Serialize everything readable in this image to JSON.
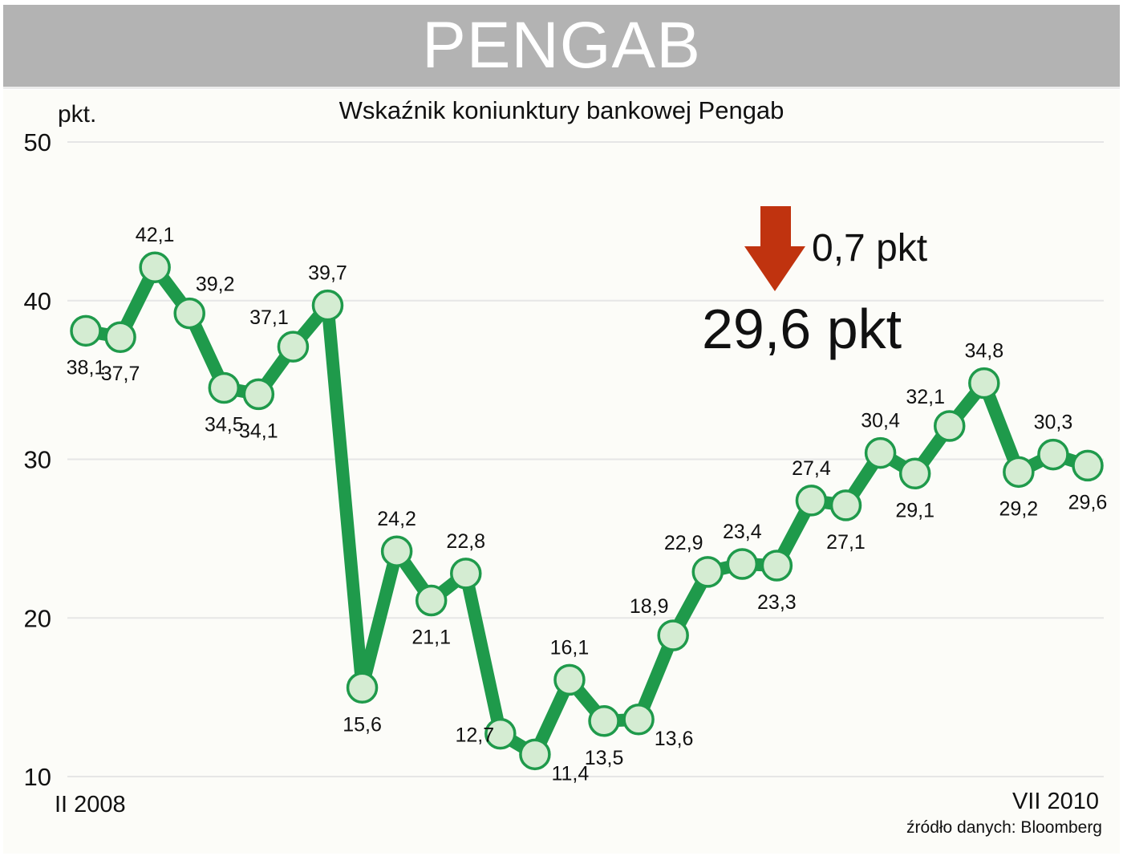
{
  "header": {
    "title": "PENGAB"
  },
  "chart_data": {
    "type": "line",
    "title": "Wskaźnik koniunktury bankowej Pengab",
    "ylabel": "pkt.",
    "ylim": [
      10,
      50
    ],
    "yticks": [
      "10",
      "20",
      "30",
      "40",
      "50"
    ],
    "x_start_label": "II 2008",
    "x_end_label": "VII 2010",
    "grid": true,
    "values": [
      38.1,
      37.7,
      42.1,
      39.2,
      34.5,
      34.1,
      37.1,
      39.7,
      15.6,
      24.2,
      21.1,
      22.8,
      12.7,
      11.4,
      16.1,
      13.5,
      13.6,
      18.9,
      22.9,
      23.4,
      23.3,
      27.4,
      27.1,
      30.4,
      29.1,
      32.1,
      34.8,
      29.2,
      30.3,
      29.6
    ],
    "labels": [
      "38,1",
      "37,7",
      "42,1",
      "39,2",
      "34,5",
      "34,1",
      "37,1",
      "39,7",
      "15,6",
      "24,2",
      "21,1",
      "22,8",
      "12,7",
      "11,4",
      "16,1",
      "13,5",
      "13,6",
      "18,9",
      "22,9",
      "23,4",
      "23,3",
      "27,4",
      "27,1",
      "30,4",
      "29,1",
      "32,1",
      "34,8",
      "29,2",
      "30,3",
      "29,6"
    ],
    "label_positions": [
      "below",
      "below",
      "above",
      "above-right",
      "below",
      "below",
      "above-left",
      "above",
      "below",
      "above",
      "below",
      "above",
      "below-left",
      "below-right",
      "above",
      "below",
      "below-right",
      "above-left",
      "above-left",
      "above",
      "below",
      "above",
      "below",
      "above",
      "below",
      "above-left",
      "above",
      "below",
      "above",
      "below"
    ],
    "annotation": {
      "change_value": "0,7 pkt",
      "change_direction": "down",
      "current_value": "29,6 pkt"
    },
    "source": "źródło danych: Bloomberg",
    "colors": {
      "line": "#1f9a4b",
      "marker_fill": "#d4ecd2",
      "marker_stroke": "#1f9a4b",
      "arrow": "#c0330f",
      "header_bg": "#b3b3b3",
      "grid": "#e6e6e6"
    }
  }
}
